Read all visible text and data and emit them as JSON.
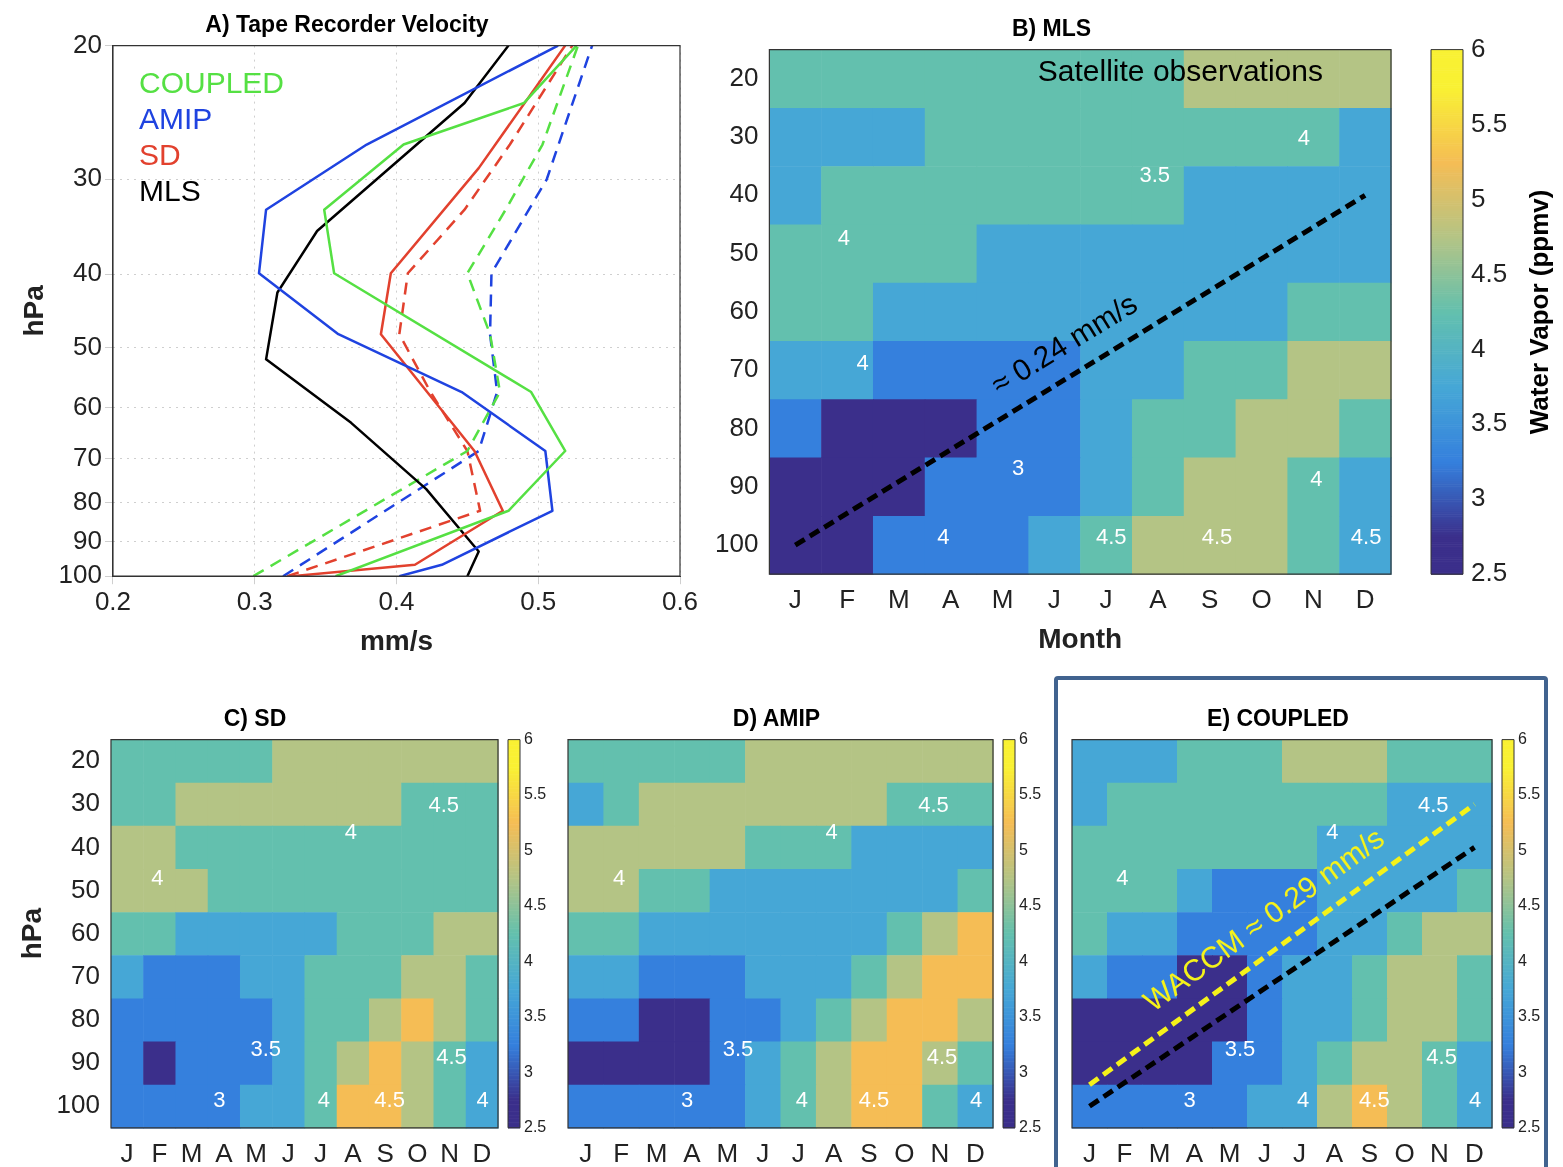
{
  "chart_data": [
    {
      "type": "line",
      "title": "A) Tape Recorder Velocity",
      "xlabel": "mm/s",
      "ylabel": "hPa",
      "xlim": [
        0.2,
        0.6
      ],
      "xticks": [
        0.2,
        0.3,
        0.4,
        0.5,
        0.6
      ],
      "ylim": [
        100,
        20
      ],
      "yticks": [
        20,
        30,
        40,
        50,
        60,
        70,
        80,
        90,
        100
      ],
      "log": "y",
      "grid": true,
      "legend": "top left",
      "series": [
        {
          "name": "COUPLED",
          "color": "#55e043",
          "x": [
            0.357,
            0.479,
            0.519,
            0.495,
            0.356,
            0.349,
            0.405,
            0.49,
            0.527
          ],
          "values": [
            100,
            82,
            68.4,
            57.2,
            39.9,
            32.9,
            27,
            23.8,
            20
          ]
        },
        {
          "name": "AMIP",
          "color": "#1f43e0",
          "x": [
            0.402,
            0.432,
            0.51,
            0.505,
            0.446,
            0.359,
            0.303,
            0.308,
            0.379,
            0.514
          ],
          "values": [
            100,
            96.6,
            82,
            68.4,
            57.2,
            48,
            39.9,
            32.9,
            27,
            20
          ]
        },
        {
          "name": "SD",
          "color": "#e2412e",
          "x": [
            0.326,
            0.413,
            0.475,
            0.455,
            0.389,
            0.396,
            0.458,
            0.519
          ],
          "values": [
            100,
            96.6,
            82,
            68.4,
            48,
            39.9,
            29,
            20
          ]
        },
        {
          "name": "MLS",
          "color": "#000000",
          "x": [
            0.45,
            0.458,
            0.421,
            0.368,
            0.308,
            0.316,
            0.344,
            0.448,
            0.479
          ],
          "values": [
            100,
            92.8,
            76.8,
            62.8,
            51.8,
            42.3,
            35.1,
            23.8,
            20
          ]
        },
        {
          "color": "#55e043",
          "line_style": "dashed",
          "x": [
            0.299,
            0.45,
            0.473,
            0.466,
            0.45,
            0.477,
            0.503,
            0.528
          ],
          "values": [
            100,
            68.4,
            57.2,
            48,
            39.9,
            32.9,
            27,
            20
          ]
        },
        {
          "color": "#1f43e0",
          "line_style": "dashed",
          "x": [
            0.32,
            0.458,
            0.471,
            0.466,
            0.467,
            0.506,
            0.538
          ],
          "values": [
            100,
            68.4,
            57.2,
            48,
            39.9,
            30,
            20
          ]
        },
        {
          "color": "#e2412e",
          "line_style": "dashed",
          "x": [
            0.323,
            0.459,
            0.45,
            0.424,
            0.402,
            0.408,
            0.448,
            0.48,
            0.524
          ],
          "values": [
            100,
            82,
            68.4,
            57.2,
            48,
            39.9,
            32.9,
            27,
            20
          ]
        }
      ]
    },
    {
      "type": "heatmap",
      "title": "B) MLS",
      "xlabel": "Month",
      "clabel": "Water Vapor (ppmv)",
      "clim": [
        2.5,
        6
      ],
      "cticks": [
        2.5,
        3,
        3.5,
        4,
        4.5,
        5,
        5.5,
        6
      ],
      "categories": [
        "J",
        "F",
        "M",
        "A",
        "M",
        "J",
        "J",
        "A",
        "S",
        "O",
        "N",
        "D"
      ],
      "ylim": [
        105,
        15
      ],
      "yticks": [
        20,
        30,
        40,
        50,
        60,
        70,
        80,
        90,
        100
      ],
      "cells": [
        [
          4.25,
          4.25,
          4.25,
          4.25,
          4.25,
          4.25,
          4.25,
          4.25,
          4.75,
          4.75,
          4.75,
          4.75
        ],
        [
          3.75,
          3.75,
          3.75,
          4.25,
          4.25,
          4.25,
          4.25,
          4.25,
          4.25,
          4.25,
          4.25,
          3.75
        ],
        [
          3.75,
          4.25,
          4.25,
          4.25,
          4.25,
          4.25,
          4.25,
          4.25,
          3.75,
          3.75,
          3.75,
          3.75
        ],
        [
          4.25,
          4.25,
          4.25,
          4.25,
          3.75,
          3.75,
          3.75,
          3.75,
          3.75,
          3.75,
          3.75,
          3.75
        ],
        [
          4.25,
          4.25,
          3.75,
          3.75,
          3.75,
          3.75,
          3.75,
          3.75,
          3.75,
          3.75,
          4.25,
          4.25
        ],
        [
          3.75,
          3.75,
          3.25,
          3.25,
          3.25,
          3.25,
          3.75,
          3.75,
          4.25,
          4.25,
          4.75,
          4.75
        ],
        [
          3.25,
          2.75,
          2.75,
          2.75,
          3.25,
          3.25,
          3.75,
          4.25,
          4.25,
          4.75,
          4.75,
          4.25
        ],
        [
          2.75,
          2.75,
          2.75,
          3.25,
          3.25,
          3.25,
          3.75,
          4.25,
          4.75,
          4.75,
          4.25,
          3.75
        ],
        [
          2.75,
          2.75,
          3.25,
          3.25,
          3.25,
          3.75,
          4.25,
          4.75,
          4.75,
          4.75,
          4.25,
          3.75
        ]
      ],
      "series": [
        {
          "type": "line",
          "name": "≈ 0.24 mm/s",
          "color": "#000000",
          "line_style": "dashed",
          "x": [
            "J",
            "D"
          ],
          "values": [
            100,
            40
          ]
        }
      ],
      "annotations": [
        "Satellite observations",
        "4",
        "4",
        "3.5",
        "3",
        "4",
        "4.5",
        "4.5",
        "4",
        "4.5",
        "4"
      ]
    },
    {
      "type": "heatmap",
      "title": "C) SD",
      "ylabel": "hPa",
      "clim": [
        2.5,
        6
      ],
      "cticks": [
        2.5,
        3,
        3.5,
        4,
        4.5,
        5,
        5.5,
        6
      ],
      "categories": [
        "J",
        "F",
        "M",
        "A",
        "M",
        "J",
        "J",
        "A",
        "S",
        "O",
        "N",
        "D"
      ],
      "ylim": [
        105,
        15
      ],
      "yticks": [
        20,
        30,
        40,
        50,
        60,
        70,
        80,
        90,
        100
      ],
      "cells": [
        [
          4.25,
          4.25,
          4.25,
          4.25,
          4.25,
          4.75,
          4.75,
          4.75,
          4.75,
          4.75,
          4.75,
          4.75
        ],
        [
          4.25,
          4.25,
          4.75,
          4.75,
          4.75,
          4.75,
          4.75,
          4.75,
          4.75,
          4.25,
          4.25,
          4.25
        ],
        [
          4.75,
          4.75,
          4.25,
          4.25,
          4.25,
          4.25,
          4.25,
          4.25,
          4.25,
          4.25,
          4.25,
          4.25
        ],
        [
          4.75,
          4.75,
          4.75,
          4.25,
          4.25,
          4.25,
          4.25,
          4.25,
          4.25,
          4.25,
          4.25,
          4.25
        ],
        [
          4.25,
          4.25,
          3.75,
          3.75,
          3.75,
          3.75,
          3.75,
          4.25,
          4.25,
          4.25,
          4.75,
          4.75
        ],
        [
          3.75,
          3.25,
          3.25,
          3.25,
          3.75,
          3.75,
          4.25,
          4.25,
          4.25,
          4.75,
          4.75,
          4.25
        ],
        [
          3.25,
          3.25,
          3.25,
          3.25,
          3.25,
          3.75,
          4.25,
          4.25,
          4.75,
          5.25,
          4.75,
          4.25
        ],
        [
          3.25,
          2.75,
          3.25,
          3.25,
          3.25,
          3.75,
          4.25,
          4.75,
          5.25,
          4.75,
          4.25,
          3.75
        ],
        [
          3.25,
          3.25,
          3.25,
          3.25,
          3.75,
          3.75,
          4.25,
          5.25,
          5.25,
          4.75,
          4.25,
          3.75
        ]
      ],
      "annotations": [
        "4",
        "4.5",
        "4",
        "3.5",
        "3",
        "4",
        "4.5",
        "4.5",
        "4"
      ]
    },
    {
      "type": "heatmap",
      "title": "D) AMIP",
      "tick_labels": "x",
      "clim": [
        2.5,
        6
      ],
      "cticks": [
        2.5,
        3,
        3.5,
        4,
        4.5,
        5,
        5.5,
        6
      ],
      "categories": [
        "J",
        "F",
        "M",
        "A",
        "M",
        "J",
        "J",
        "A",
        "S",
        "O",
        "N",
        "D"
      ],
      "ylim": [
        105,
        15
      ],
      "yticks": [
        20,
        30,
        40,
        50,
        60,
        70,
        80,
        90,
        100
      ],
      "cells": [
        [
          4.25,
          4.25,
          4.25,
          4.25,
          4.25,
          4.75,
          4.75,
          4.75,
          4.75,
          4.75,
          4.75,
          4.75
        ],
        [
          3.75,
          4.25,
          4.75,
          4.75,
          4.75,
          4.75,
          4.75,
          4.75,
          4.75,
          4.25,
          4.25,
          4.25
        ],
        [
          4.75,
          4.75,
          4.75,
          4.75,
          4.75,
          4.25,
          4.25,
          4.25,
          3.75,
          3.75,
          3.75,
          3.75
        ],
        [
          4.75,
          4.75,
          4.25,
          4.25,
          3.75,
          3.75,
          3.75,
          3.75,
          3.75,
          3.75,
          3.75,
          4.25
        ],
        [
          4.25,
          4.25,
          3.75,
          3.75,
          3.75,
          3.75,
          3.75,
          3.75,
          3.75,
          4.25,
          4.75,
          5.25
        ],
        [
          3.75,
          3.75,
          3.25,
          3.25,
          3.25,
          3.75,
          3.75,
          3.75,
          4.25,
          4.75,
          5.25,
          5.25
        ],
        [
          3.25,
          3.25,
          2.75,
          2.75,
          3.25,
          3.25,
          3.75,
          4.25,
          4.75,
          5.25,
          5.25,
          4.75
        ],
        [
          2.75,
          2.75,
          2.75,
          2.75,
          3.25,
          3.75,
          4.25,
          4.75,
          5.25,
          5.25,
          4.75,
          4.25
        ],
        [
          3.25,
          3.25,
          3.25,
          3.25,
          3.25,
          3.75,
          4.25,
          4.75,
          5.25,
          5.25,
          4.25,
          3.75
        ]
      ],
      "annotations": [
        "4",
        "4.5",
        "4",
        "3.5",
        "3",
        "4",
        "4.5",
        "4.5",
        "4"
      ]
    },
    {
      "type": "heatmap",
      "title": "E) COUPLED",
      "tick_labels": "x",
      "clim": [
        2.5,
        6
      ],
      "cticks": [
        2.5,
        3,
        3.5,
        4,
        4.5,
        5,
        5.5,
        6
      ],
      "categories": [
        "J",
        "F",
        "M",
        "A",
        "M",
        "J",
        "J",
        "A",
        "S",
        "O",
        "N",
        "D"
      ],
      "ylim": [
        105,
        15
      ],
      "yticks": [
        20,
        30,
        40,
        50,
        60,
        70,
        80,
        90,
        100
      ],
      "cells": [
        [
          3.75,
          3.75,
          3.75,
          4.25,
          4.25,
          4.25,
          4.75,
          4.75,
          4.75,
          4.25,
          4.25,
          4.25
        ],
        [
          3.75,
          4.25,
          4.25,
          4.25,
          4.25,
          4.25,
          4.25,
          4.25,
          4.25,
          3.75,
          3.75,
          3.75
        ],
        [
          4.25,
          4.25,
          4.25,
          4.25,
          4.25,
          4.25,
          4.25,
          3.75,
          3.75,
          3.75,
          3.75,
          3.75
        ],
        [
          4.25,
          4.25,
          4.25,
          3.75,
          3.25,
          3.25,
          3.25,
          3.75,
          3.75,
          3.75,
          3.75,
          4.25
        ],
        [
          4.25,
          3.75,
          3.75,
          3.25,
          3.25,
          3.25,
          3.25,
          3.75,
          3.75,
          4.25,
          4.75,
          4.75
        ],
        [
          3.75,
          3.25,
          3.25,
          2.75,
          2.75,
          3.25,
          3.75,
          3.75,
          4.25,
          4.75,
          4.75,
          4.25
        ],
        [
          2.75,
          2.75,
          2.75,
          2.75,
          2.75,
          3.25,
          3.75,
          3.75,
          4.25,
          4.75,
          4.75,
          4.25
        ],
        [
          2.75,
          2.75,
          2.75,
          2.75,
          3.25,
          3.25,
          3.75,
          4.25,
          4.75,
          4.75,
          4.25,
          3.75
        ],
        [
          3.25,
          3.25,
          3.25,
          3.25,
          3.25,
          3.75,
          3.75,
          4.75,
          5.25,
          4.75,
          4.25,
          3.75
        ]
      ],
      "series": [
        {
          "type": "line",
          "name": "WACCM ≈ 0.29 mm/s",
          "color": "#f5f21a",
          "line_style": "dashed",
          "x": [
            "J",
            "D"
          ],
          "values": [
            95,
            30
          ]
        },
        {
          "type": "line",
          "color": "#000000",
          "line_style": "dashed",
          "x": [
            "J",
            "D"
          ],
          "values": [
            100,
            40
          ]
        }
      ],
      "annotations": [
        "4",
        "4.5",
        "4",
        "3.5",
        "3",
        "4",
        "4.5",
        "4.5",
        "4"
      ]
    }
  ]
}
